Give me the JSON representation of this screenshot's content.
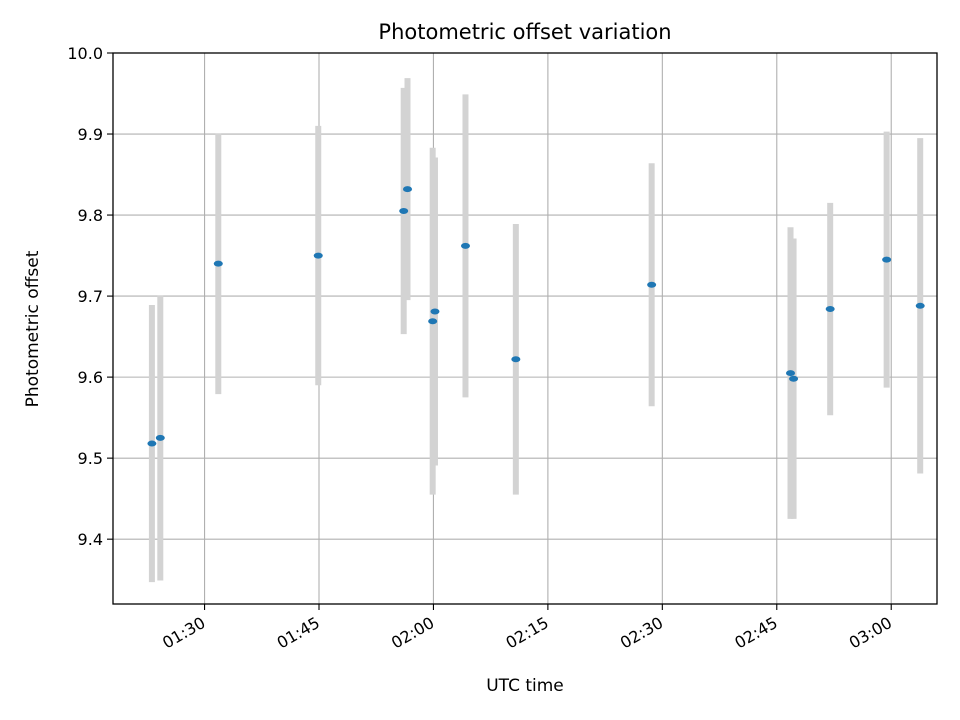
{
  "chart_data": {
    "type": "scatter",
    "title": "Photometric offset variation",
    "xlabel": "UTC time",
    "ylabel": "Photometric offset",
    "xlim": [
      "01:18",
      "03:06"
    ],
    "ylim": [
      9.32,
      10.0
    ],
    "x_ticks": [
      "01:30",
      "01:45",
      "02:00",
      "02:15",
      "02:30",
      "02:45",
      "03:00"
    ],
    "y_ticks": [
      9.4,
      9.5,
      9.6,
      9.7,
      9.8,
      9.9,
      10.0
    ],
    "y_tick_labels": [
      "9.4",
      "9.5",
      "9.6",
      "9.7",
      "9.8",
      "9.9",
      "10.0"
    ],
    "grid": true,
    "colors": {
      "marker": "#1f77b4",
      "errorbar": "#d3d3d3",
      "grid": "#b0b0b0"
    },
    "points": [
      {
        "time": "01:23:06",
        "y": 9.518,
        "err": 0.171
      },
      {
        "time": "01:24:12",
        "y": 9.525,
        "err": 0.176
      },
      {
        "time": "01:31:48",
        "y": 9.74,
        "err": 0.161
      },
      {
        "time": "01:44:54",
        "y": 9.75,
        "err": 0.16
      },
      {
        "time": "01:56:06",
        "y": 9.805,
        "err": 0.152
      },
      {
        "time": "01:56:36",
        "y": 9.832,
        "err": 0.137
      },
      {
        "time": "01:59:54",
        "y": 9.669,
        "err": 0.214
      },
      {
        "time": "02:00:12",
        "y": 9.681,
        "err": 0.19
      },
      {
        "time": "02:04:12",
        "y": 9.762,
        "err": 0.187
      },
      {
        "time": "02:10:48",
        "y": 9.622,
        "err": 0.167
      },
      {
        "time": "02:28:36",
        "y": 9.714,
        "err": 0.15
      },
      {
        "time": "02:46:48",
        "y": 9.605,
        "err": 0.18
      },
      {
        "time": "02:47:12",
        "y": 9.598,
        "err": 0.173
      },
      {
        "time": "02:52:00",
        "y": 9.684,
        "err": 0.131
      },
      {
        "time": "02:59:24",
        "y": 9.745,
        "err": 0.158
      },
      {
        "time": "03:03:48",
        "y": 9.688,
        "err": 0.207
      }
    ]
  }
}
